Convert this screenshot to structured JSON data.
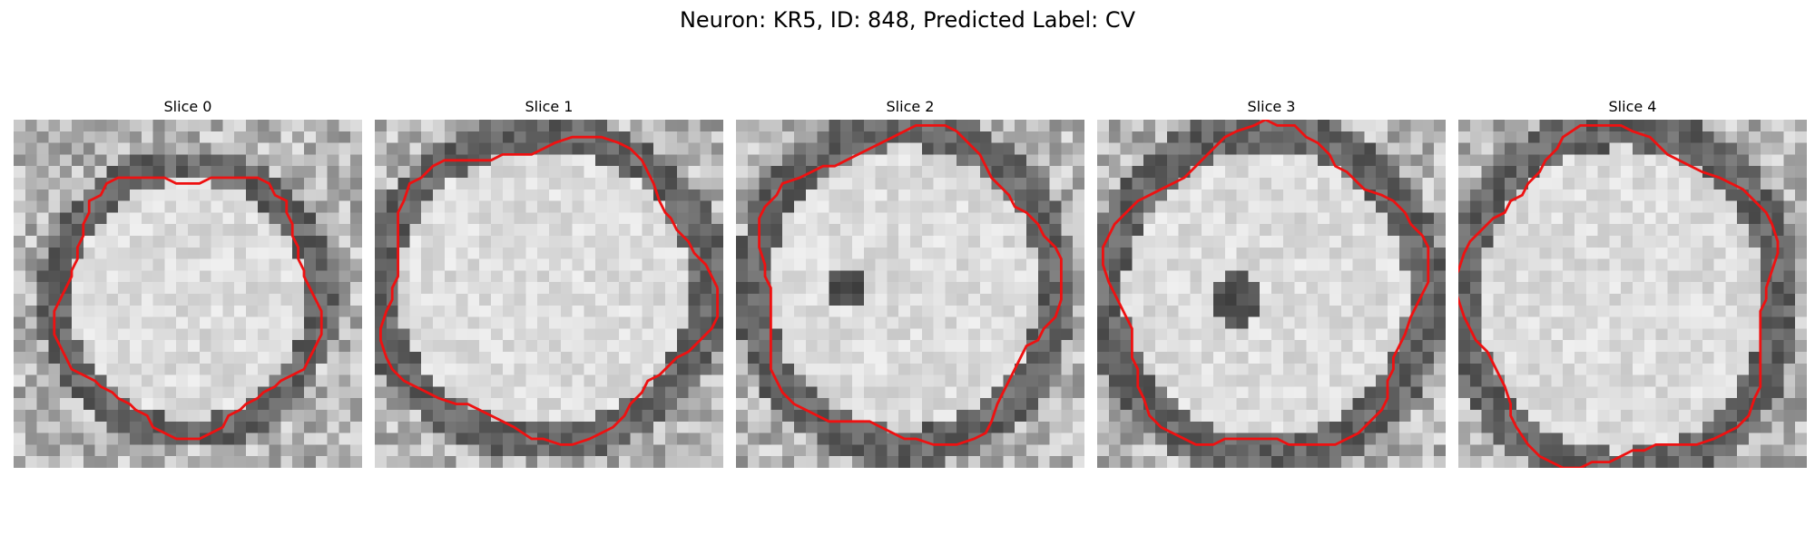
{
  "figure": {
    "title": "Neuron: KR5, ID: 848, Predicted Label: CV"
  },
  "panels": [
    {
      "title": "Slice 0"
    },
    {
      "title": "Slice 1"
    },
    {
      "title": "Slice 2"
    },
    {
      "title": "Slice 3"
    },
    {
      "title": "Slice 4"
    }
  ],
  "colors": {
    "contour": "#ee1111",
    "background": "#ffffff"
  }
}
